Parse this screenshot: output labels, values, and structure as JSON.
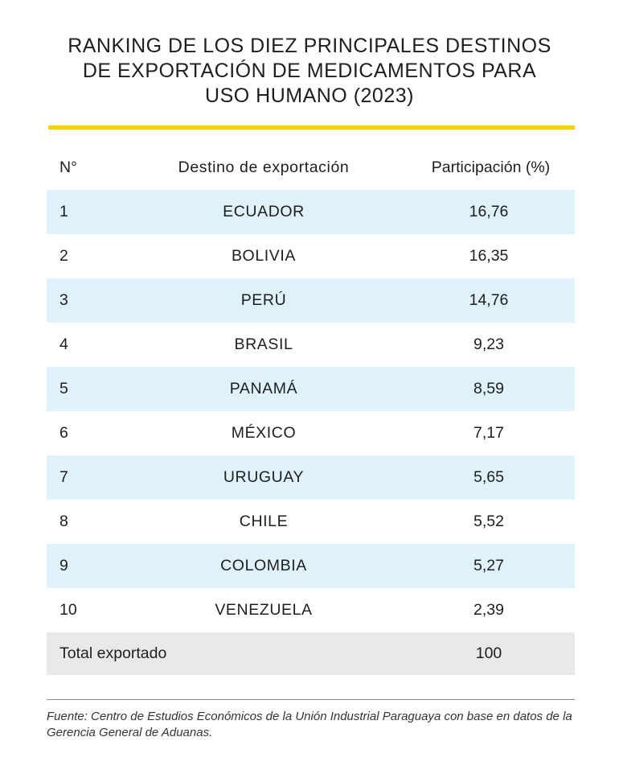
{
  "title": {
    "line1": "RANKING DE LOS DIEZ PRINCIPALES DESTINOS",
    "line2": "DE EXPORTACIÓN DE MEDICAMENTOS PARA",
    "line3": "USO HUMANO (2023)"
  },
  "colors": {
    "accent_rule": "#f5d01a",
    "row_fill": "#dff1fb",
    "total_fill": "#e9e9e9"
  },
  "table": {
    "headers": {
      "number": "N°",
      "destination": "Destino de exportación",
      "share": "Participación (%)"
    },
    "rows": [
      {
        "rank": "1",
        "destination": "ECUADOR",
        "share": "16,76"
      },
      {
        "rank": "2",
        "destination": "BOLIVIA",
        "share": "16,35"
      },
      {
        "rank": "3",
        "destination": "PERÚ",
        "share": "14,76"
      },
      {
        "rank": "4",
        "destination": "BRASIL",
        "share": "9,23"
      },
      {
        "rank": "5",
        "destination": "PANAMÁ",
        "share": "8,59"
      },
      {
        "rank": "6",
        "destination": "MÉXICO",
        "share": "7,17"
      },
      {
        "rank": "7",
        "destination": "URUGUAY",
        "share": "5,65"
      },
      {
        "rank": "8",
        "destination": "CHILE",
        "share": "5,52"
      },
      {
        "rank": "9",
        "destination": "COLOMBIA",
        "share": "5,27"
      },
      {
        "rank": "10",
        "destination": "VENEZUELA",
        "share": "2,39"
      }
    ],
    "total": {
      "label": "Total exportado",
      "value": "100"
    }
  },
  "source": "Fuente: Centro de Estudios Económicos de la Unión Industrial Paraguaya con base en datos de la Gerencia General de Aduanas."
}
